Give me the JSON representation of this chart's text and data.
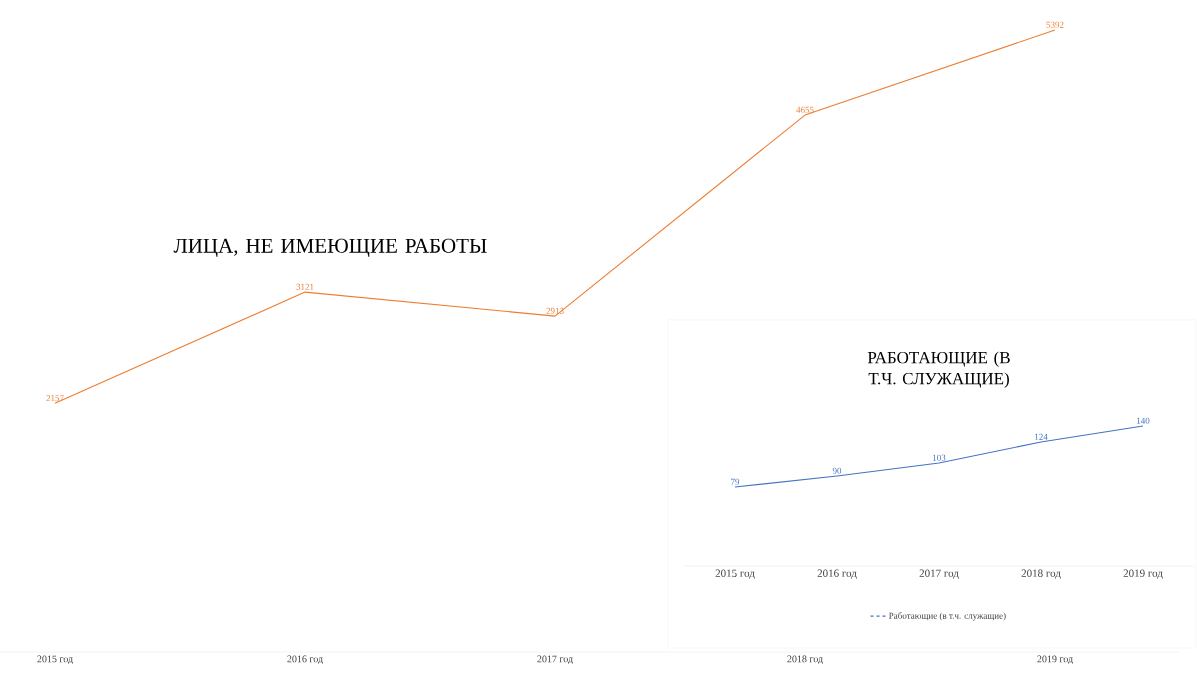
{
  "chart_data": [
    {
      "type": "line",
      "title": "ЛИЦА, НЕ ИМЕЮЩИЕ РАБОТЫ",
      "categories": [
        "2015 год",
        "2016 год",
        "2017 год",
        "2018 год",
        "2019 год"
      ],
      "series": [
        {
          "color": "#ed7d31",
          "values": [
            2157,
            3121,
            2913,
            4655,
            5392
          ]
        }
      ],
      "data_labels": true
    },
    {
      "type": "line",
      "title": "РАБОТАЮЩИЕ (В Т.Ч. СЛУЖАЩИЕ)",
      "categories": [
        "2015 год",
        "2016 год",
        "2017 год",
        "2018 год",
        "2019 год"
      ],
      "series": [
        {
          "name": "Работающие (в т.ч. служащие)",
          "color": "#4472c4",
          "values": [
            79,
            90,
            103,
            124,
            140
          ]
        }
      ],
      "data_labels": true,
      "legend": "bottom"
    }
  ]
}
